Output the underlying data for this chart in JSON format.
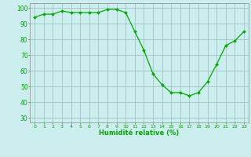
{
  "x": [
    0,
    1,
    2,
    3,
    4,
    5,
    6,
    7,
    8,
    9,
    10,
    11,
    12,
    13,
    14,
    15,
    16,
    17,
    18,
    19,
    20,
    21,
    22,
    23
  ],
  "y": [
    94,
    96,
    96,
    98,
    97,
    97,
    97,
    97,
    99,
    99,
    97,
    85,
    73,
    58,
    51,
    46,
    46,
    44,
    46,
    53,
    64,
    76,
    79,
    85
  ],
  "line_color": "#00aa00",
  "marker_color": "#00aa00",
  "bg_color": "#cceeee",
  "grid_color": "#99bbbb",
  "xlabel": "Humidité relative (%)",
  "xlabel_color": "#00aa00",
  "tick_color": "#00aa00",
  "ylim": [
    27,
    103
  ],
  "yticks": [
    30,
    40,
    50,
    60,
    70,
    80,
    90,
    100
  ],
  "xlim": [
    -0.5,
    23.5
  ],
  "xticks": [
    0,
    1,
    2,
    3,
    4,
    5,
    6,
    7,
    8,
    9,
    10,
    11,
    12,
    13,
    14,
    15,
    16,
    17,
    18,
    19,
    20,
    21,
    22,
    23
  ],
  "figsize": [
    3.2,
    2.0
  ],
  "dpi": 100
}
